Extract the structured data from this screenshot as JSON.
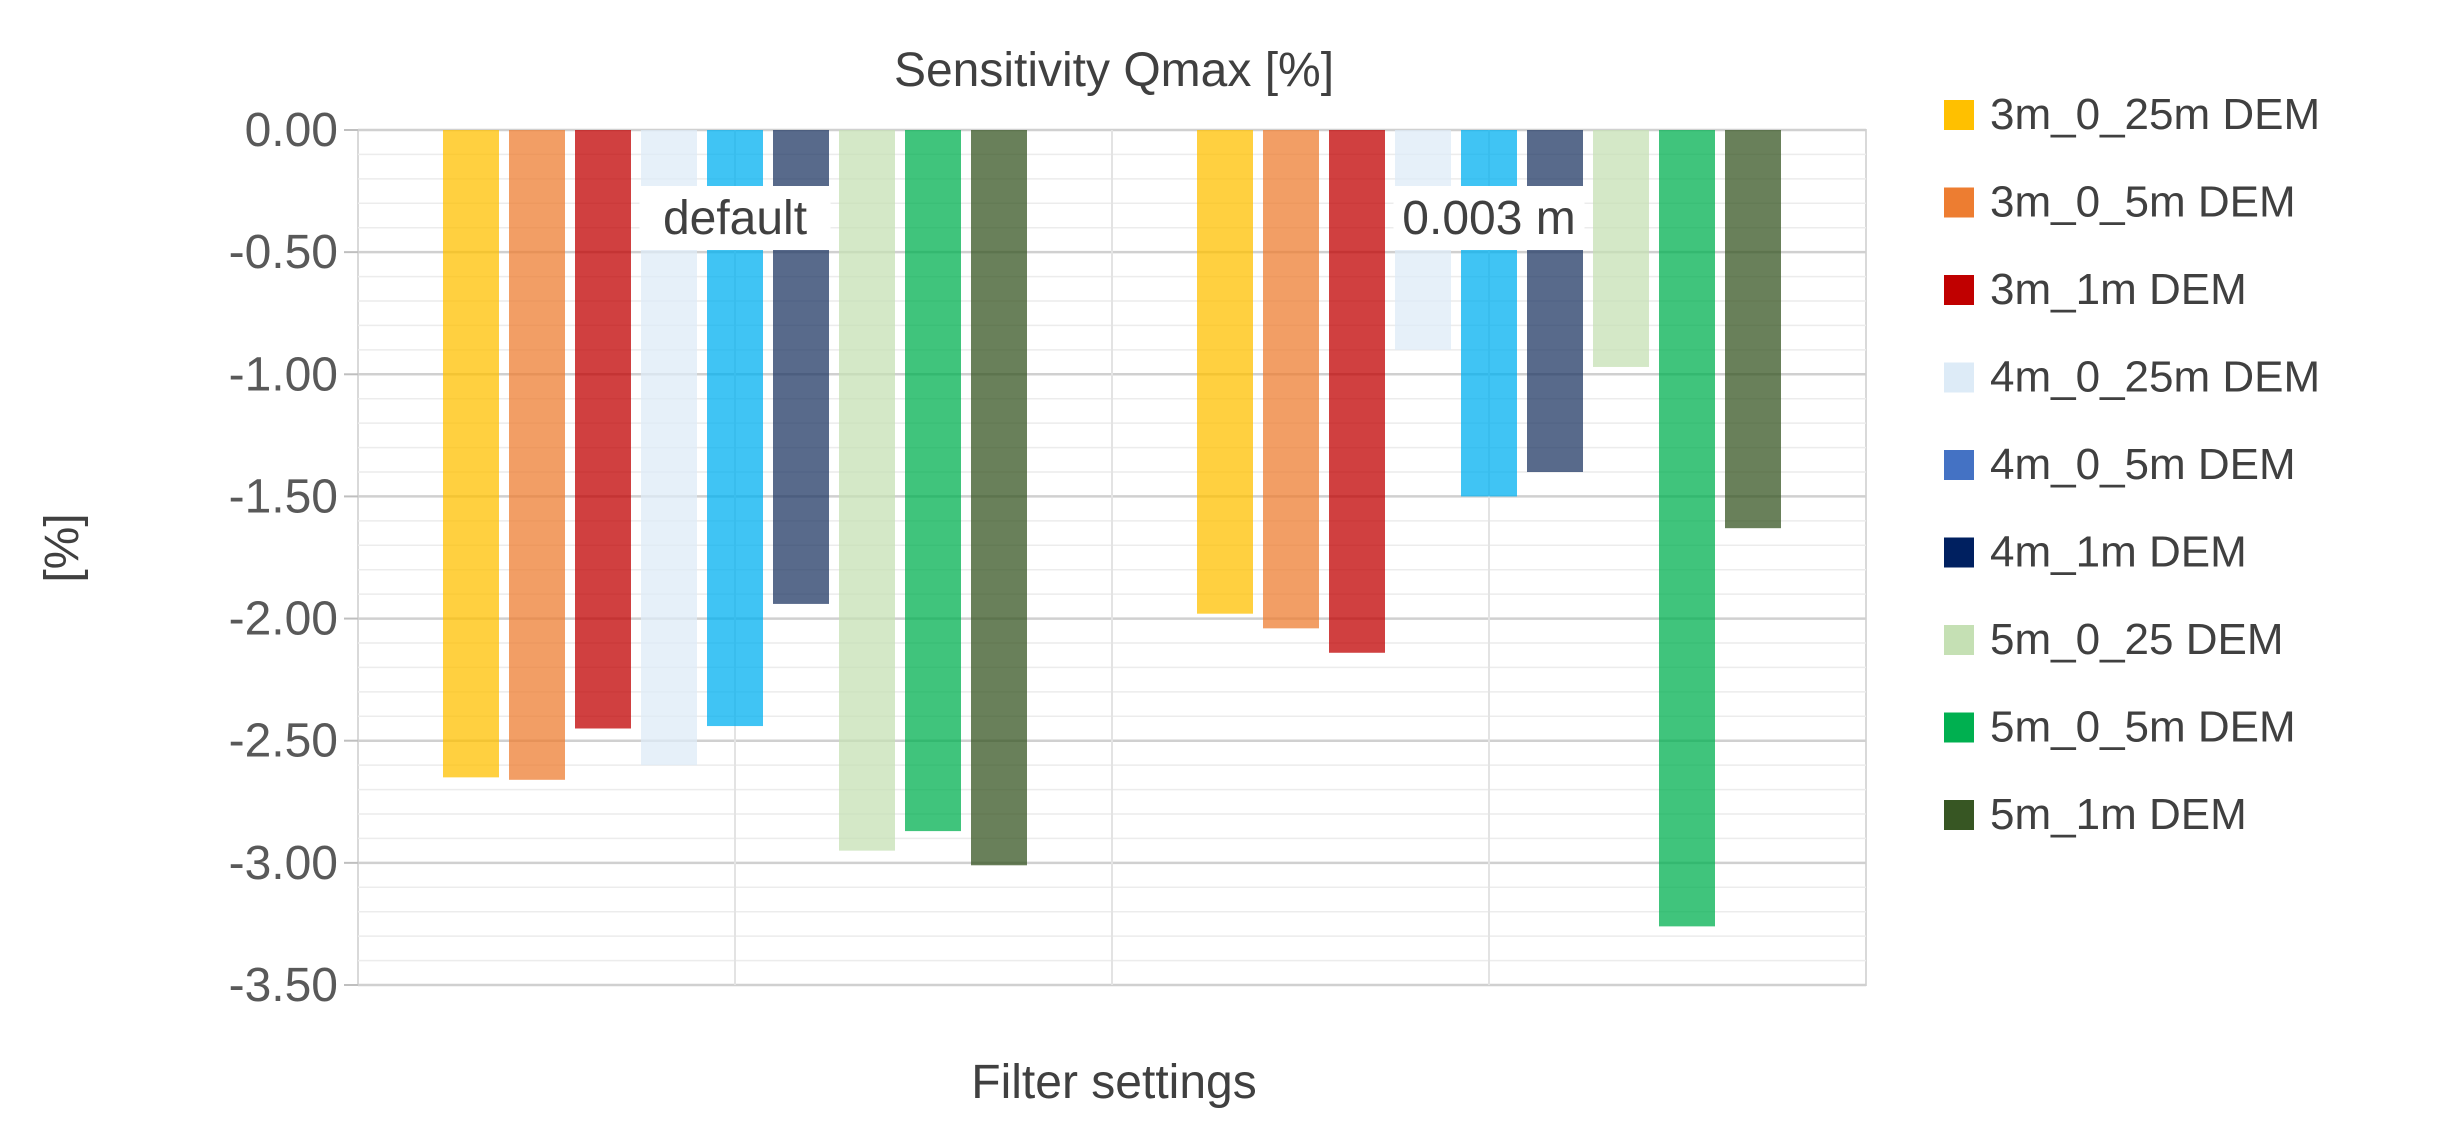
{
  "chart_data": {
    "type": "bar",
    "title": "Sensitivity Qmax [%]",
    "xlabel": "Filter settings",
    "ylabel": "[%]",
    "ylim": [
      -3.5,
      0
    ],
    "yticks": [
      0.0,
      -0.5,
      -1.0,
      -1.5,
      -2.0,
      -2.5,
      -3.0,
      -3.5
    ],
    "ytick_labels": [
      "0.00",
      "-0.50",
      "-1.00",
      "-1.50",
      "-2.00",
      "-2.50",
      "-3.00",
      "-3.50"
    ],
    "categories": [
      "default",
      "0.003 m"
    ],
    "grid": true,
    "legend_position": "right",
    "series": [
      {
        "name": "3m_0_25m DEM",
        "color": "#FFC000",
        "values": [
          -2.65,
          -1.98
        ]
      },
      {
        "name": "3m_0_5m DEM",
        "color": "#ED7D31",
        "values": [
          -2.66,
          -2.04
        ]
      },
      {
        "name": "3m_1m DEM",
        "color": "#C00000",
        "values": [
          -2.45,
          -2.14
        ]
      },
      {
        "name": "4m_0_25m DEM",
        "color": "#DDEBF7",
        "values": [
          -2.6,
          -0.9
        ]
      },
      {
        "name": "4m_0_5m DEM",
        "color": "#00B0F0",
        "values": [
          -2.44,
          -1.5
        ]
      },
      {
        "name": "4m_1m DEM",
        "color": "#203864",
        "values": [
          -1.94,
          -1.4
        ]
      },
      {
        "name": "5m_0_25 DEM",
        "color": "#C5E0B4",
        "values": [
          -2.95,
          -0.97
        ]
      },
      {
        "name": "5m_0_5m DEM",
        "color": "#00B050",
        "values": [
          -2.87,
          -3.26
        ]
      },
      {
        "name": "5m_1m DEM",
        "color": "#375623",
        "values": [
          -3.01,
          -1.63
        ]
      }
    ],
    "legend_colors": [
      "#FFC000",
      "#ED7D31",
      "#C00000",
      "#DDEBF7",
      "#4472C4",
      "#002060",
      "#C5E0B4",
      "#00B050",
      "#375623"
    ]
  }
}
